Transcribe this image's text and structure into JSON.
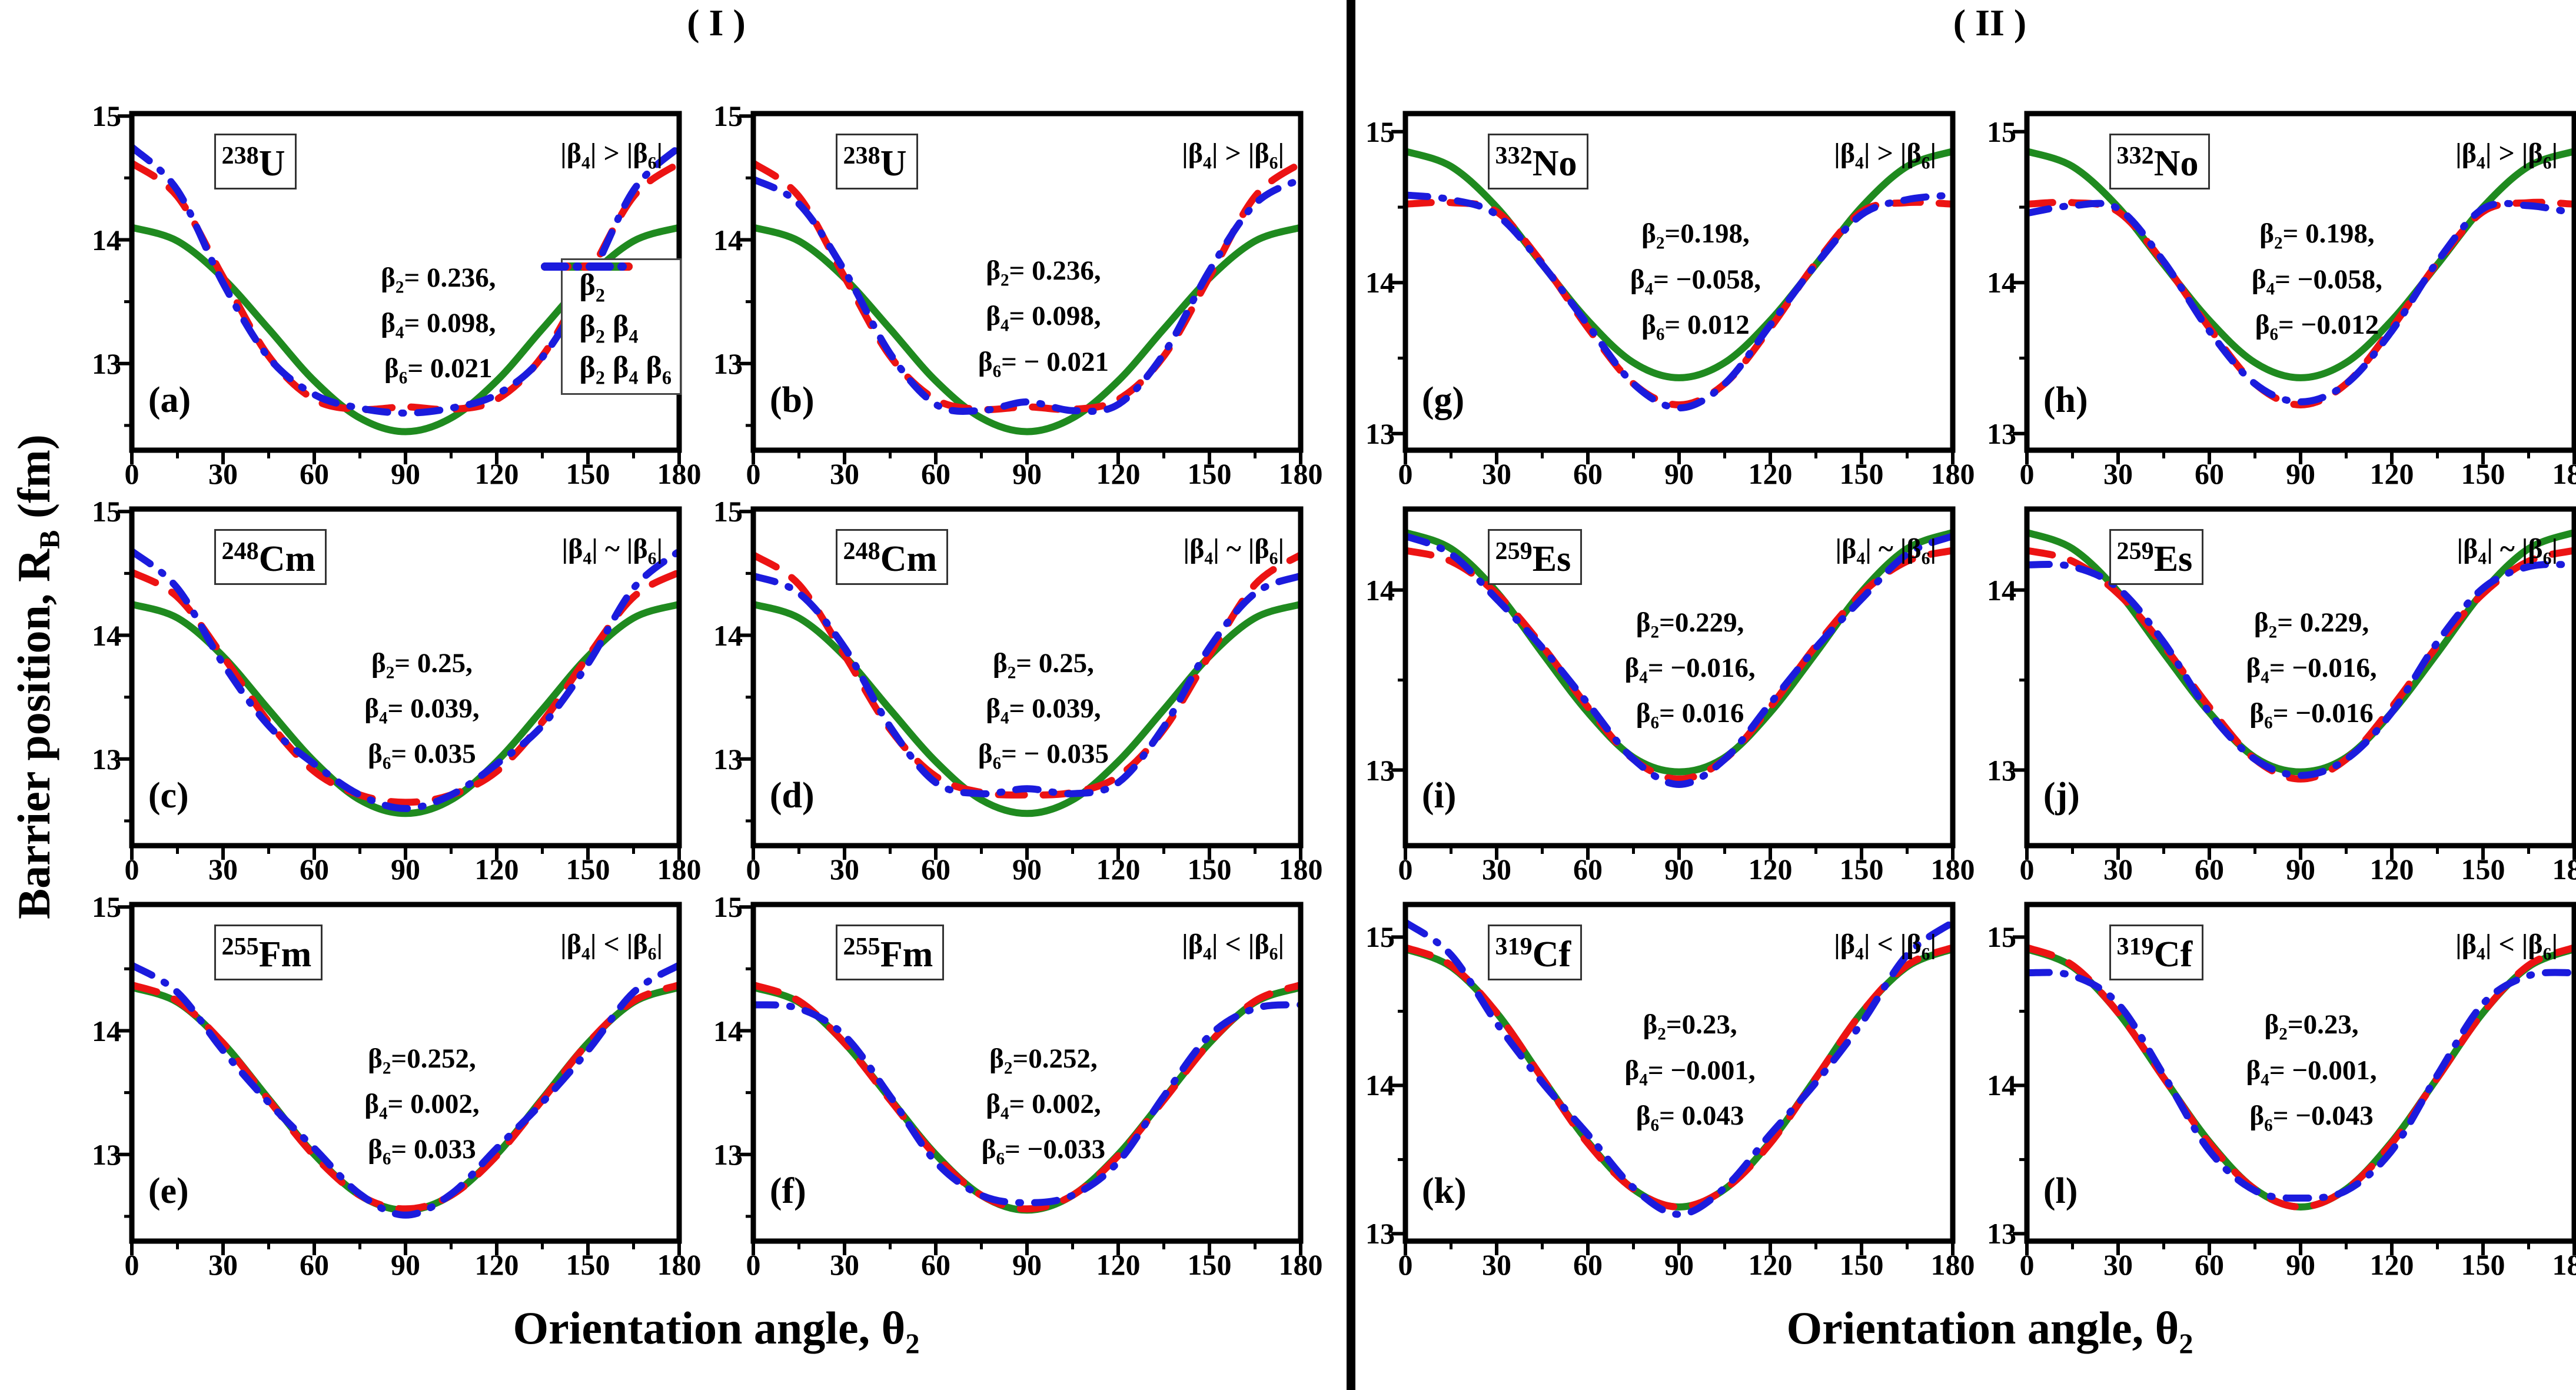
{
  "figure": {
    "ylabel": "Barrier position, R_B_ (fm)",
    "background": "#ffffff",
    "groups": [
      {
        "title": "( I )",
        "xlabel": "Orientation angle, θ_2_"
      },
      {
        "title": "( II )",
        "xlabel": "Orientation angle, θ_2_"
      }
    ]
  },
  "colors": {
    "beta2": "#1f8a1f",
    "beta2beta4": "#ec1313",
    "beta2beta4beta6": "#1b1bdd",
    "axis": "#000000"
  },
  "legend": {
    "owner_panel": "a",
    "entries": [
      {
        "label": "β_2_",
        "color": "#1f8a1f",
        "style": "solid"
      },
      {
        "label": "β_2_ β_4_",
        "color": "#ec1313",
        "style": "dashed"
      },
      {
        "label": "β_2_ β_4_ β_6_",
        "color": "#1b1bdd",
        "style": "dashdot"
      }
    ]
  },
  "chart_data": {
    "type": "line",
    "x": [
      0,
      15,
      30,
      45,
      60,
      75,
      90,
      105,
      120,
      135,
      150,
      165,
      180
    ],
    "x_ticks": [
      0,
      30,
      60,
      90,
      120,
      150,
      180
    ],
    "x_minor_ticks": [
      15,
      45,
      75,
      105,
      135,
      165
    ],
    "xlim": [
      0,
      180
    ],
    "xlabel": "Orientation angle, θ_2_",
    "ylabel": "Barrier position, R_B_ (fm)",
    "grid": false,
    "legend_position": "bottom-right of panel (a)",
    "series_names": [
      "β2",
      "β2 β4",
      "β2 β4 β6"
    ],
    "panels": [
      {
        "id": "a",
        "letter": "(a)",
        "group": 0,
        "row": 0,
        "col": 0,
        "nucleus_mass": "238",
        "nucleus_symbol": "U",
        "condition": "|β_4_| > |β_6_|",
        "betas": [
          "β_2_= 0.236,",
          "β_4_= 0.098,",
          "β_6_= 0.021"
        ],
        "anno": {
          "x": 56,
          "y": 44
        },
        "y_ticks": [
          15,
          14,
          13
        ],
        "y_range": [
          12.3,
          15.02
        ],
        "series": {
          "beta2": [
            14.1,
            13.99,
            13.69,
            13.28,
            12.86,
            12.56,
            12.45,
            12.56,
            12.86,
            13.28,
            13.69,
            13.99,
            14.1
          ],
          "beta2beta4": [
            14.62,
            14.35,
            13.7,
            13.06,
            12.71,
            12.63,
            12.65,
            12.63,
            12.71,
            13.06,
            13.7,
            14.35,
            14.62
          ],
          "beta2beta4beta6": [
            14.75,
            14.4,
            13.65,
            13.05,
            12.75,
            12.64,
            12.6,
            12.64,
            12.75,
            13.05,
            13.65,
            14.4,
            14.75
          ]
        }
      },
      {
        "id": "b",
        "letter": "(b)",
        "group": 0,
        "row": 0,
        "col": 1,
        "nucleus_mass": "238",
        "nucleus_symbol": "U",
        "condition": "|β_4_| > |β_6_|",
        "betas": [
          "β_2_= 0.236,",
          "β_4_= 0.098,",
          "β_6_= − 0.021"
        ],
        "anno": {
          "x": 53,
          "y": 42
        },
        "y_ticks": [
          15,
          14,
          13
        ],
        "y_range": [
          12.3,
          15.02
        ],
        "series": {
          "beta2": [
            14.1,
            13.99,
            13.69,
            13.28,
            12.86,
            12.56,
            12.45,
            12.56,
            12.86,
            13.28,
            13.69,
            13.99,
            14.1
          ],
          "beta2beta4": [
            14.62,
            14.35,
            13.7,
            13.06,
            12.71,
            12.63,
            12.65,
            12.63,
            12.71,
            13.06,
            13.7,
            14.35,
            14.62
          ],
          "beta2beta4beta6": [
            14.49,
            14.29,
            13.75,
            13.08,
            12.67,
            12.62,
            12.69,
            12.62,
            12.67,
            13.08,
            13.75,
            14.29,
            14.49
          ]
        }
      },
      {
        "id": "c",
        "letter": "(c)",
        "group": 0,
        "row": 1,
        "col": 0,
        "nucleus_mass": "248",
        "nucleus_symbol": "Cm",
        "condition": "|β_4_| ~ |β_6_|",
        "betas": [
          "β_2_= 0.25,",
          "β_4_= 0.039,",
          "β_6_= 0.035"
        ],
        "anno": {
          "x": 53,
          "y": 41
        },
        "y_ticks": [
          15,
          14,
          13
        ],
        "y_range": [
          12.3,
          15.02
        ],
        "series": {
          "beta2": [
            14.25,
            14.14,
            13.83,
            13.4,
            12.98,
            12.67,
            12.56,
            12.67,
            12.98,
            13.4,
            13.83,
            14.14,
            14.25
          ],
          "beta2beta4": [
            14.51,
            14.31,
            13.83,
            13.3,
            12.9,
            12.71,
            12.65,
            12.71,
            12.9,
            13.3,
            13.83,
            14.31,
            14.51
          ],
          "beta2beta4beta6": [
            14.68,
            14.38,
            13.77,
            13.27,
            12.96,
            12.71,
            12.6,
            12.71,
            12.96,
            13.27,
            13.77,
            14.38,
            14.68
          ]
        }
      },
      {
        "id": "d",
        "letter": "(d)",
        "group": 0,
        "row": 1,
        "col": 1,
        "nucleus_mass": "248",
        "nucleus_symbol": "Cm",
        "condition": "|β_4_| ~ |β_6_|",
        "betas": [
          "β_2_= 0.25,",
          "β_4_= 0.039,",
          "β_6_= − 0.035"
        ],
        "anno": {
          "x": 53,
          "y": 41
        },
        "y_ticks": [
          15,
          14,
          13
        ],
        "y_range": [
          12.3,
          15.02
        ],
        "series": {
          "beta2": [
            14.25,
            14.14,
            13.83,
            13.4,
            12.98,
            12.67,
            12.56,
            12.67,
            12.98,
            13.4,
            13.83,
            14.14,
            14.25
          ],
          "beta2beta4": [
            14.65,
            14.41,
            13.84,
            13.24,
            12.86,
            12.73,
            12.71,
            12.73,
            12.86,
            13.24,
            13.84,
            14.41,
            14.65
          ],
          "beta2beta4beta6": [
            14.48,
            14.34,
            13.9,
            13.26,
            12.81,
            12.72,
            12.76,
            12.72,
            12.81,
            13.26,
            13.9,
            14.34,
            14.48
          ]
        }
      },
      {
        "id": "e",
        "letter": "(e)",
        "group": 0,
        "row": 2,
        "col": 0,
        "nucleus_mass": "255",
        "nucleus_symbol": "Fm",
        "condition": "|β_4_| < |β_6_|",
        "betas": [
          "β_2_=0.252,",
          "β_4_= 0.002,",
          "β_6_= 0.033"
        ],
        "anno": {
          "x": 53,
          "y": 41
        },
        "y_ticks": [
          15,
          14,
          13
        ],
        "y_range": [
          12.3,
          15.02
        ],
        "series": {
          "beta2": [
            14.35,
            14.23,
            13.9,
            13.45,
            13.0,
            12.67,
            12.55,
            12.67,
            13.0,
            13.45,
            13.9,
            14.23,
            14.35
          ],
          "beta2beta4": [
            14.37,
            14.24,
            13.9,
            13.44,
            12.99,
            12.67,
            12.56,
            12.67,
            12.99,
            13.44,
            13.9,
            14.24,
            14.37
          ],
          "beta2beta4beta6": [
            14.53,
            14.31,
            13.84,
            13.42,
            13.05,
            12.68,
            12.51,
            12.68,
            13.05,
            13.42,
            13.84,
            14.31,
            14.53
          ]
        }
      },
      {
        "id": "f",
        "letter": "(f)",
        "group": 0,
        "row": 2,
        "col": 1,
        "nucleus_mass": "255",
        "nucleus_symbol": "Fm",
        "condition": "|β_4_| < |β_6_|",
        "betas": [
          "β_2_=0.252,",
          "β_4_= 0.002,",
          "β_6_= −0.033"
        ],
        "anno": {
          "x": 53,
          "y": 41
        },
        "y_ticks": [
          15,
          14,
          13
        ],
        "y_range": [
          12.3,
          15.02
        ],
        "series": {
          "beta2": [
            14.35,
            14.23,
            13.9,
            13.45,
            13.0,
            12.67,
            12.55,
            12.67,
            13.0,
            13.45,
            13.9,
            14.23,
            14.35
          ],
          "beta2beta4": [
            14.37,
            14.24,
            13.9,
            13.44,
            12.99,
            12.67,
            12.56,
            12.67,
            12.99,
            13.44,
            13.9,
            14.24,
            14.37
          ],
          "beta2beta4beta6": [
            14.21,
            14.18,
            13.96,
            13.47,
            12.94,
            12.67,
            12.61,
            12.67,
            12.94,
            13.47,
            13.96,
            14.18,
            14.21
          ]
        }
      },
      {
        "id": "g",
        "letter": "(g)",
        "group": 1,
        "row": 0,
        "col": 2,
        "nucleus_mass": "332",
        "nucleus_symbol": "No",
        "condition": "|β_4_| > |β_6_|",
        "betas": [
          "β_2_=0.198,",
          "β_4_= −0.058,",
          "β_6_= 0.012"
        ],
        "anno": {
          "x": 53,
          "y": 31
        },
        "y_ticks": [
          15,
          14,
          13
        ],
        "y_range": [
          12.89,
          15.12
        ],
        "series": {
          "beta2": [
            14.87,
            14.77,
            14.5,
            14.12,
            13.75,
            13.47,
            13.37,
            13.47,
            13.75,
            14.12,
            14.5,
            14.77,
            14.87
          ],
          "beta2beta4": [
            14.52,
            14.53,
            14.47,
            14.13,
            13.7,
            13.33,
            13.19,
            13.33,
            13.7,
            14.13,
            14.47,
            14.53,
            14.52
          ],
          "beta2beta4beta6": [
            14.58,
            14.55,
            14.45,
            14.12,
            13.72,
            13.33,
            13.17,
            13.33,
            13.72,
            14.12,
            14.45,
            14.55,
            14.58
          ]
        }
      },
      {
        "id": "h",
        "letter": "(h)",
        "group": 1,
        "row": 0,
        "col": 3,
        "nucleus_mass": "332",
        "nucleus_symbol": "No",
        "condition": "|β_4_| > |β_6_|",
        "betas": [
          "β_2_= 0.198,",
          "β_4_= −0.058,",
          "β_6_= −0.012"
        ],
        "anno": {
          "x": 53,
          "y": 31
        },
        "y_ticks": [
          15,
          14,
          13
        ],
        "y_range": [
          12.89,
          15.12
        ],
        "series": {
          "beta2": [
            14.87,
            14.77,
            14.5,
            14.12,
            13.75,
            13.47,
            13.37,
            13.47,
            13.75,
            14.12,
            14.5,
            14.77,
            14.87
          ],
          "beta2beta4": [
            14.52,
            14.53,
            14.47,
            14.13,
            13.7,
            13.33,
            13.19,
            13.33,
            13.7,
            14.13,
            14.47,
            14.53,
            14.52
          ],
          "beta2beta4beta6": [
            14.46,
            14.51,
            14.49,
            14.14,
            13.68,
            13.33,
            13.21,
            13.33,
            13.68,
            14.14,
            14.49,
            14.51,
            14.46
          ]
        }
      },
      {
        "id": "i",
        "letter": "(i)",
        "group": 1,
        "row": 1,
        "col": 2,
        "nucleus_mass": "259",
        "nucleus_symbol": "Es",
        "condition": "|β_4_| ~ |β_6_|",
        "betas": [
          "β_2_=0.229,",
          "β_4_= −0.016,",
          "β_6_= 0.016"
        ],
        "anno": {
          "x": 52,
          "y": 29
        },
        "y_ticks": [
          14,
          13
        ],
        "y_range": [
          12.58,
          14.45
        ],
        "series": {
          "beta2": [
            14.32,
            14.23,
            13.99,
            13.65,
            13.32,
            13.07,
            12.99,
            13.07,
            13.32,
            13.65,
            13.99,
            14.23,
            14.32
          ],
          "beta2beta4": [
            14.22,
            14.16,
            13.98,
            13.69,
            13.35,
            13.06,
            12.95,
            13.06,
            13.35,
            13.69,
            13.98,
            14.16,
            14.22
          ],
          "beta2beta4beta6": [
            14.3,
            14.2,
            13.95,
            13.68,
            13.37,
            13.06,
            12.92,
            13.06,
            13.37,
            13.68,
            13.95,
            14.2,
            14.3
          ]
        }
      },
      {
        "id": "j",
        "letter": "(j)",
        "group": 1,
        "row": 1,
        "col": 3,
        "nucleus_mass": "259",
        "nucleus_symbol": "Es",
        "condition": "|β_4_| ~ |β_6_|",
        "betas": [
          "β_2_= 0.229,",
          "β_4_= −0.016,",
          "β_6_= −0.016"
        ],
        "anno": {
          "x": 52,
          "y": 29
        },
        "y_ticks": [
          14,
          13
        ],
        "y_range": [
          12.58,
          14.45
        ],
        "series": {
          "beta2": [
            14.32,
            14.23,
            13.99,
            13.65,
            13.32,
            13.07,
            12.99,
            13.07,
            13.32,
            13.65,
            13.99,
            14.23,
            14.32
          ],
          "beta2beta4": [
            14.22,
            14.16,
            13.98,
            13.69,
            13.35,
            13.06,
            12.95,
            13.06,
            13.35,
            13.69,
            13.98,
            14.16,
            14.22
          ],
          "beta2beta4beta6": [
            14.14,
            14.13,
            14.01,
            13.71,
            13.32,
            13.06,
            12.97,
            13.06,
            13.32,
            13.71,
            14.01,
            14.13,
            14.14
          ]
        }
      },
      {
        "id": "k",
        "letter": "(k)",
        "group": 1,
        "row": 2,
        "col": 2,
        "nucleus_mass": "319",
        "nucleus_symbol": "Cf",
        "condition": "|β_4_| < |β_6_|",
        "betas": [
          "β_2_=0.23,",
          "β_4_= −0.001,",
          "β_6_= 0.043"
        ],
        "anno": {
          "x": 52,
          "y": 31
        },
        "y_ticks": [
          15,
          14,
          13
        ],
        "y_range": [
          12.95,
          15.22
        ],
        "series": {
          "beta2": [
            14.92,
            14.8,
            14.49,
            14.05,
            13.62,
            13.3,
            13.18,
            13.3,
            13.62,
            14.05,
            14.49,
            14.8,
            14.92
          ],
          "beta2beta4": [
            14.93,
            14.81,
            14.49,
            14.05,
            13.61,
            13.3,
            13.18,
            13.3,
            13.61,
            14.05,
            14.49,
            14.81,
            14.93
          ],
          "beta2beta4beta6": [
            15.1,
            14.88,
            14.42,
            14.02,
            13.67,
            13.31,
            13.13,
            13.31,
            13.67,
            14.02,
            14.42,
            14.88,
            15.1
          ]
        }
      },
      {
        "id": "l",
        "letter": "(l)",
        "group": 1,
        "row": 2,
        "col": 3,
        "nucleus_mass": "319",
        "nucleus_symbol": "Cf",
        "condition": "|β_4_| < |β_6_|",
        "betas": [
          "β_2_=0.23,",
          "β_4_= −0.001,",
          "β_6_= −0.043"
        ],
        "anno": {
          "x": 52,
          "y": 31
        },
        "y_ticks": [
          15,
          14,
          13
        ],
        "y_range": [
          12.95,
          15.22
        ],
        "series": {
          "beta2": [
            14.92,
            14.8,
            14.49,
            14.05,
            13.62,
            13.3,
            13.18,
            13.3,
            13.62,
            14.05,
            14.49,
            14.8,
            14.92
          ],
          "beta2beta4": [
            14.93,
            14.81,
            14.49,
            14.05,
            13.61,
            13.3,
            13.18,
            13.3,
            13.61,
            14.05,
            14.49,
            14.81,
            14.93
          ],
          "beta2beta4beta6": [
            14.76,
            14.74,
            14.55,
            14.07,
            13.56,
            13.29,
            13.24,
            13.29,
            13.56,
            14.07,
            14.55,
            14.74,
            14.76
          ]
        }
      }
    ]
  }
}
